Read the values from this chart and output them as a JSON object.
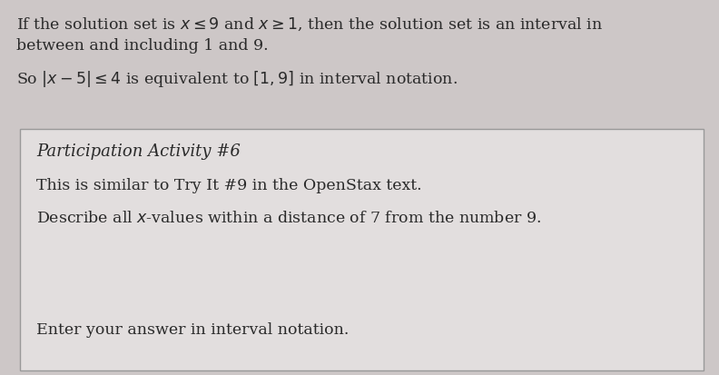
{
  "bg_color": "#cdc7c7",
  "box_bg_color": "#e2dede",
  "box_border_color": "#999999",
  "text_color": "#2a2a2a",
  "font_size_body": 12.5,
  "font_size_title": 13.0,
  "top_line1_plain": "If the solution set is ",
  "top_line1_math": " and ",
  "top_line1_end": ", then the solution set is an interval in",
  "top_line2": "between and including 1 and 9.",
  "top_line3_pre": "So ",
  "top_line3_post": " is equivalent to ",
  "top_line3_end": " in interval notation.",
  "box_title": "Participation Activity #6",
  "box_line1": "This is similar to Try It #9 in the OpenStax text.",
  "box_line2_pre": "Describe all ",
  "box_line2_post": "-values within a distance of 7 from the number 9.",
  "box_line3": "Enter your answer in interval notation."
}
